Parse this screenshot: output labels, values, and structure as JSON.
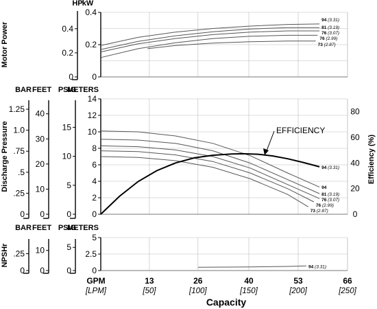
{
  "chart_data": {
    "type": "line",
    "x_axis": {
      "title": "Capacity",
      "unit_primary": "GPM",
      "unit_secondary": "[LPM]",
      "ticks": [
        {
          "gpm": "13",
          "lpm": "[50]",
          "x": 13
        },
        {
          "gpm": "26",
          "lpm": "[100]",
          "x": 26
        },
        {
          "gpm": "40",
          "lpm": "[150]",
          "x": 39.6
        },
        {
          "gpm": "53",
          "lpm": "[200]",
          "x": 52.8
        },
        {
          "gpm": "66",
          "lpm": "[250]",
          "x": 66
        }
      ],
      "range": [
        0,
        66
      ]
    },
    "panels": [
      {
        "id": "power",
        "title": "Motor Power",
        "units": [
          "HP",
          "kW"
        ],
        "primary_unit": "kW",
        "ylim": [
          0,
          0.4
        ],
        "primary_ticks": [
          "0",
          "0.2",
          "0.4"
        ],
        "secondary_axes": [
          {
            "unit": "HP",
            "ticks": [
              "0",
              "0.2",
              "0.4"
            ],
            "values": [
              0,
              0.2,
              0.4
            ],
            "max": 0.536
          }
        ],
        "series": [
          {
            "label": "94",
            "sub": "(3.31)",
            "x": [
              0,
              10,
              20,
              30,
              40,
              50,
              58.5
            ],
            "y": [
              0.195,
              0.245,
              0.278,
              0.3,
              0.315,
              0.325,
              0.328
            ]
          },
          {
            "label": "81",
            "sub": "(3.19)",
            "x": [
              0,
              10,
              20,
              30,
              40,
              50,
              58.5
            ],
            "y": [
              0.17,
              0.22,
              0.255,
              0.28,
              0.297,
              0.305,
              0.305
            ]
          },
          {
            "label": "76",
            "sub": "(3.07)",
            "x": [
              0,
              10,
              20,
              30,
              40,
              50,
              58.5
            ],
            "y": [
              0.155,
              0.205,
              0.238,
              0.262,
              0.278,
              0.285,
              0.285
            ]
          },
          {
            "label": "76",
            "sub": "(2.99)",
            "x": [
              0,
              10,
              20,
              30,
              40,
              50,
              58
            ],
            "y": [
              0.12,
              0.175,
              0.212,
              0.238,
              0.252,
              0.258,
              0.258
            ]
          },
          {
            "label": "73",
            "sub": "(2.87)",
            "x": [
              12.5,
              20,
              30,
              40,
              50,
              57.5
            ],
            "y": [
              0.175,
              0.195,
              0.21,
              0.218,
              0.222,
              0.222
            ]
          }
        ]
      },
      {
        "id": "discharge",
        "title": "Discharge Pressure",
        "units": [
          "BAR",
          "FEET",
          "PSIG",
          "METERS"
        ],
        "primary_unit": "METERS",
        "ylim": [
          0,
          14
        ],
        "primary_ticks": [
          "0",
          "2",
          "4",
          "6",
          "8",
          "10",
          "12",
          "14"
        ],
        "secondary_axes": [
          {
            "unit": "PSIG",
            "ticks": [
              "0",
              "5",
              "10",
              "15"
            ],
            "values": [
              0,
              5,
              10,
              15
            ],
            "max": 19.9
          },
          {
            "unit": "FEET",
            "ticks": [
              "0",
              "10",
              "20",
              "30",
              "40"
            ],
            "values": [
              0,
              10,
              20,
              30,
              40
            ],
            "max": 45.93
          },
          {
            "unit": "BAR",
            "ticks": [
              "0",
              ".25",
              ".5",
              ".75",
              "1.0",
              "1.25"
            ],
            "values": [
              0,
              0.25,
              0.5,
              0.75,
              1.0,
              1.25
            ],
            "max": 1.373
          }
        ],
        "right_axis": {
          "title": "Efficiency (%)",
          "ticks": [
            "0",
            "20",
            "40",
            "60",
            "80"
          ],
          "values": [
            0,
            20,
            40,
            60,
            80
          ],
          "ylim": [
            0,
            90
          ]
        },
        "series": [
          {
            "label": "94",
            "sub": "",
            "x": [
              0,
              10,
              20,
              30,
              40,
              50,
              58.5
            ],
            "y": [
              10.1,
              10.0,
              9.5,
              8.6,
              7.1,
              5.0,
              3.3
            ]
          },
          {
            "label": "81",
            "sub": "(3.19)",
            "x": [
              0,
              10,
              20,
              30,
              40,
              50,
              58.5
            ],
            "y": [
              9.1,
              9.0,
              8.6,
              7.7,
              6.2,
              4.2,
              2.5
            ]
          },
          {
            "label": "76",
            "sub": "(3.07)",
            "x": [
              0,
              10,
              20,
              30,
              40,
              50,
              58.5
            ],
            "y": [
              8.3,
              8.2,
              7.8,
              7.0,
              5.6,
              3.6,
              1.9
            ]
          },
          {
            "label": "76",
            "sub": "(2.99)",
            "x": [
              0,
              10,
              20,
              30,
              40,
              50,
              57
            ],
            "y": [
              7.7,
              7.6,
              7.2,
              6.4,
              5.0,
              3.1,
              1.5
            ]
          },
          {
            "label": "73",
            "sub": "(2.87)",
            "x": [
              0,
              10,
              20,
              30,
              40,
              50,
              55.5
            ],
            "y": [
              7.0,
              6.9,
              6.5,
              5.7,
              4.3,
              2.4,
              0.9
            ]
          }
        ],
        "efficiency": {
          "annotation": "EFFICIENCY",
          "label": "94",
          "sub": "(3.31)",
          "x": [
            0,
            5,
            10,
            15,
            20,
            25,
            30,
            35,
            38,
            42,
            46,
            50,
            54,
            58.5
          ],
          "y": [
            0,
            14,
            25.5,
            34,
            40,
            44,
            46,
            47,
            47.2,
            46.8,
            45.5,
            43.3,
            40.5,
            37
          ]
        }
      },
      {
        "id": "npsh",
        "title": "NPSHr",
        "units": [
          "BAR",
          "FEET",
          "PSIG",
          "METERS"
        ],
        "primary_unit": "METERS",
        "ylim": [
          0,
          5
        ],
        "primary_ticks": [
          "0",
          "2.5",
          "5"
        ],
        "secondary_axes": [
          {
            "unit": "PSIG",
            "ticks": [
              "0",
              "5"
            ],
            "values": [
              0,
              5
            ],
            "max": 7.11
          },
          {
            "unit": "FEET",
            "ticks": [
              "0",
              "10"
            ],
            "values": [
              0,
              10
            ],
            "max": 16.4
          },
          {
            "unit": "BAR",
            "ticks": [
              "0",
              ".25"
            ],
            "values": [
              0,
              0.25
            ],
            "max": 0.49
          }
        ],
        "series": [
          {
            "label": "94",
            "sub": "(3.31)",
            "x": [
              26,
              40,
              50,
              55
            ],
            "y": [
              0.5,
              0.55,
              0.62,
              0.7
            ]
          }
        ]
      }
    ]
  }
}
